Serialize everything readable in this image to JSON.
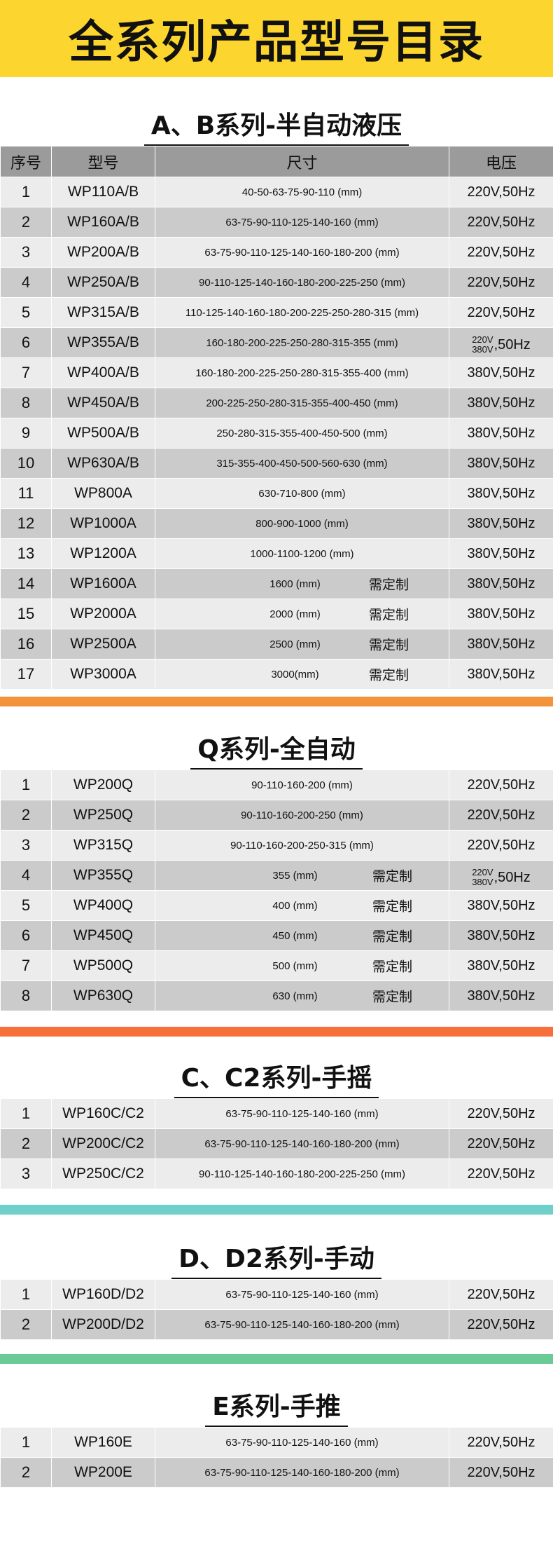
{
  "banner": {
    "title": "全系列产品型号目录"
  },
  "headers": {
    "index": "序号",
    "model": "型号",
    "size": "尺寸",
    "voltage": "电压"
  },
  "sections": [
    {
      "title": "A、B系列-半自动液压",
      "bar_color": "#f4943a",
      "rows": [
        {
          "index": "1",
          "model": "WP110A/B",
          "size": "40-50-63-75-90-110 (mm)",
          "voltage": "220V,50Hz"
        },
        {
          "index": "2",
          "model": "WP160A/B",
          "size": "63-75-90-110-125-140-160 (mm)",
          "voltage": "220V,50Hz"
        },
        {
          "index": "3",
          "model": "WP200A/B",
          "size": "63-75-90-110-125-140-160-180-200 (mm)",
          "voltage": "220V,50Hz"
        },
        {
          "index": "4",
          "model": "WP250A/B",
          "size": "90-110-125-140-160-180-200-225-250 (mm)",
          "voltage": "220V,50Hz"
        },
        {
          "index": "5",
          "model": "WP315A/B",
          "size": "110-125-140-160-180-200-225-250-280-315 (mm)",
          "voltage": "220V,50Hz"
        },
        {
          "index": "6",
          "model": "WP355A/B",
          "size": "160-180-200-225-250-280-315-355 (mm)",
          "voltage_top": "220V",
          "voltage_bottom": "380V",
          "voltage_tail": ",50Hz"
        },
        {
          "index": "7",
          "model": "WP400A/B",
          "size": "160-180-200-225-250-280-315-355-400 (mm)",
          "voltage": "380V,50Hz"
        },
        {
          "index": "8",
          "model": "WP450A/B",
          "size": "200-225-250-280-315-355-400-450 (mm)",
          "voltage": "380V,50Hz"
        },
        {
          "index": "9",
          "model": "WP500A/B",
          "size": "250-280-315-355-400-450-500 (mm)",
          "voltage": "380V,50Hz"
        },
        {
          "index": "10",
          "model": "WP630A/B",
          "size": "315-355-400-450-500-560-630 (mm)",
          "voltage": "380V,50Hz"
        },
        {
          "index": "11",
          "model": "WP800A",
          "size": "630-710-800 (mm)",
          "voltage": "380V,50Hz"
        },
        {
          "index": "12",
          "model": "WP1000A",
          "size": "800-900-1000 (mm)",
          "voltage": "380V,50Hz"
        },
        {
          "index": "13",
          "model": "WP1200A",
          "size": "1000-1100-1200 (mm)",
          "voltage": "380V,50Hz"
        },
        {
          "index": "14",
          "model": "WP1600A",
          "size": "1600 (mm)",
          "custom": "需定制",
          "voltage": "380V,50Hz"
        },
        {
          "index": "15",
          "model": "WP2000A",
          "size": "2000 (mm)",
          "custom": "需定制",
          "voltage": "380V,50Hz"
        },
        {
          "index": "16",
          "model": "WP2500A",
          "size": "2500 (mm)",
          "custom": "需定制",
          "voltage": "380V,50Hz"
        },
        {
          "index": "17",
          "model": "WP3000A",
          "size": "3000(mm)",
          "custom": "需定制",
          "voltage": "380V,50Hz"
        }
      ]
    },
    {
      "title": "Q系列-全自动",
      "bar_color": "#f7703c",
      "rows": [
        {
          "index": "1",
          "model": "WP200Q",
          "size": "90-110-160-200 (mm)",
          "voltage": "220V,50Hz"
        },
        {
          "index": "2",
          "model": "WP250Q",
          "size": "90-110-160-200-250 (mm)",
          "voltage": "220V,50Hz"
        },
        {
          "index": "3",
          "model": "WP315Q",
          "size": "90-110-160-200-250-315 (mm)",
          "voltage": "220V,50Hz"
        },
        {
          "index": "4",
          "model": "WP355Q",
          "size": "355 (mm)",
          "custom": "需定制",
          "voltage_top": "220V",
          "voltage_bottom": "380V",
          "voltage_tail": ",50Hz"
        },
        {
          "index": "5",
          "model": "WP400Q",
          "size": "400 (mm)",
          "custom": "需定制",
          "voltage": "380V,50Hz"
        },
        {
          "index": "6",
          "model": "WP450Q",
          "size": "450 (mm)",
          "custom": "需定制",
          "voltage": "380V,50Hz"
        },
        {
          "index": "7",
          "model": "WP500Q",
          "size": "500 (mm)",
          "custom": "需定制",
          "voltage": "380V,50Hz"
        },
        {
          "index": "8",
          "model": "WP630Q",
          "size": "630 (mm)",
          "custom": "需定制",
          "voltage": "380V,50Hz"
        }
      ]
    },
    {
      "title": "C、C2系列-手摇",
      "bar_color": "#6fcfcb",
      "rows": [
        {
          "index": "1",
          "model": "WP160C/C2",
          "size": "63-75-90-110-125-140-160 (mm)",
          "voltage": "220V,50Hz"
        },
        {
          "index": "2",
          "model": "WP200C/C2",
          "size": "63-75-90-110-125-140-160-180-200 (mm)",
          "voltage": "220V,50Hz"
        },
        {
          "index": "3",
          "model": "WP250C/C2",
          "size": "90-110-125-140-160-180-200-225-250 (mm)",
          "voltage": "220V,50Hz"
        }
      ]
    },
    {
      "title": "D、D2系列-手动",
      "bar_color": "#6acb96",
      "rows": [
        {
          "index": "1",
          "model": "WP160D/D2",
          "size": "63-75-90-110-125-140-160 (mm)",
          "voltage": "220V,50Hz"
        },
        {
          "index": "2",
          "model": "WP200D/D2",
          "size": "63-75-90-110-125-140-160-180-200 (mm)",
          "voltage": "220V,50Hz"
        }
      ]
    },
    {
      "title": "E系列-手推",
      "rows": [
        {
          "index": "1",
          "model": "WP160E",
          "size": "63-75-90-110-125-140-160 (mm)",
          "voltage": "220V,50Hz"
        },
        {
          "index": "2",
          "model": "WP200E",
          "size": "63-75-90-110-125-140-160-180-200 (mm)",
          "voltage": "220V,50Hz"
        }
      ]
    }
  ]
}
